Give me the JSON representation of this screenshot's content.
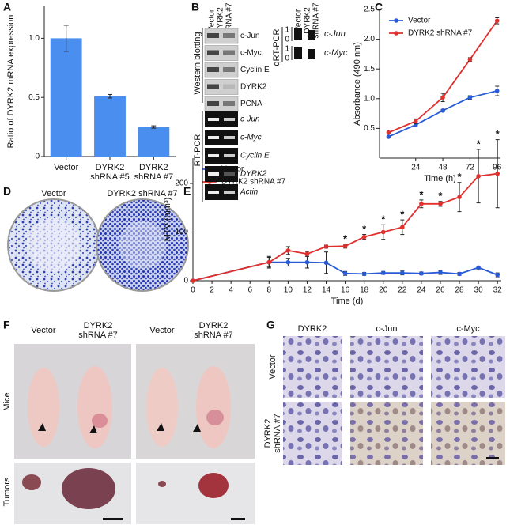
{
  "panel_labels": [
    "A",
    "B",
    "C",
    "D",
    "E",
    "F",
    "G"
  ],
  "chart_data": [
    {
      "type": "bar",
      "ylabel": "Ratio of DYRK2 mRNA expression",
      "categories": [
        "Vector",
        "DYRK2\nshRNA #5",
        "DYRK2\nshRNA #7"
      ],
      "values": [
        1.0,
        0.51,
        0.25
      ],
      "errors": [
        0.11,
        0.015,
        0.01
      ],
      "color": "#4a8ef0",
      "ylim": [
        0,
        1.27
      ],
      "yticks": [
        0,
        0.5,
        {
          "value": 1,
          "label": "1.0"
        }
      ]
    },
    {
      "type": "line",
      "xlabel": "Time (h)",
      "ylabel": "Absorbance (490 nm)",
      "x": [
        0,
        24,
        48,
        72,
        96
      ],
      "series": [
        {
          "name": "Vector",
          "color": "#2a5bd7",
          "values": [
            0.36,
            0.56,
            0.8,
            1.02,
            1.13
          ],
          "errors": [
            0.02,
            0.02,
            0.02,
            0.03,
            0.08
          ]
        },
        {
          "name": "DYRK2 shRNA #7",
          "color": "#e0302e",
          "values": [
            0.43,
            0.62,
            1.02,
            1.66,
            2.31
          ],
          "errors": [
            0.02,
            0.04,
            0.07,
            0.03,
            0.05
          ]
        }
      ],
      "xlim": [
        -8,
        99
      ],
      "ylim": [
        0,
        2.5
      ],
      "xticks": [
        24,
        48,
        72,
        96
      ],
      "yticks": [
        0.5,
        {
          "value": 1,
          "label": "1.0"
        },
        1.5,
        {
          "value": 2,
          "label": "2.0"
        },
        2.5
      ],
      "legend": "upper left"
    },
    {
      "type": "line",
      "xlabel": "Time (d)",
      "ylabel": "MTV (mm³)",
      "x": [
        0,
        8,
        10,
        12,
        14,
        16,
        18,
        20,
        22,
        24,
        26,
        28,
        30,
        32
      ],
      "series": [
        {
          "name": "Vector",
          "color": "#2a5bd7",
          "values": [
            0,
            38,
            38,
            38,
            37,
            15,
            14,
            16,
            16,
            15,
            17,
            14,
            27,
            12
          ],
          "errors": [
            0,
            10,
            8,
            12,
            22,
            4,
            3,
            3,
            4,
            3,
            4,
            3,
            3,
            4
          ]
        },
        {
          "name": "DYRK2 shRNA #7",
          "color": "#e0302e",
          "values": [
            0,
            38,
            62,
            55,
            70,
            71,
            90,
            100,
            110,
            158,
            158,
            172,
            215,
            220
          ],
          "errors": [
            0,
            12,
            8,
            5,
            3,
            4,
            5,
            15,
            15,
            8,
            5,
            30,
            55,
            70
          ]
        }
      ],
      "xlim": [
        0,
        32.4
      ],
      "ylim": [
        0,
        252
      ],
      "xticks": [
        0,
        2,
        4,
        6,
        8,
        10,
        12,
        14,
        16,
        18,
        20,
        22,
        24,
        26,
        28,
        30,
        32
      ],
      "yticks": [
        0,
        100,
        200
      ],
      "legend": "upper left",
      "significance": {
        "label": "*",
        "x": [
          16,
          18,
          20,
          22,
          24,
          26,
          28,
          30,
          32
        ]
      }
    }
  ],
  "blot": {
    "lanes": [
      "Vector",
      "DYRK2\nshRNA #7"
    ],
    "western_title": "Western blotting",
    "western": [
      "c-Jun",
      "c-Myc",
      "Cyclin E",
      "DYRK2",
      "PCNA"
    ],
    "rtpcr_title": "RT-PCR",
    "rtpcr": [
      "c-Jun",
      "c-Myc",
      "Cyclin E",
      "DYRK2",
      "Actin"
    ],
    "qrtpcr_title": "qRT-PCR",
    "qrtpcr_lanes": [
      "Vector",
      "DYRK2\nshRNA #7"
    ],
    "qrtpcr_genes": [
      {
        "name": "c-Jun",
        "ticks": [
          1,
          0
        ]
      },
      {
        "name": "c-Myc",
        "ticks": [
          1,
          0
        ]
      }
    ]
  },
  "colony": {
    "labels": [
      "Vector",
      "DYRK2 shRNA #7"
    ]
  },
  "tumor": {
    "columns": [
      "Vector",
      "DYRK2\nshRNA #7",
      "Vector",
      "DYRK2\nshRNA #7"
    ],
    "rows": [
      "Mice",
      "Tumors"
    ]
  },
  "ihc": {
    "columns": [
      "DYRK2",
      "c-Jun",
      "c-Myc"
    ],
    "rows": [
      "Vector",
      "DYRK2\nshRNA #7"
    ]
  }
}
